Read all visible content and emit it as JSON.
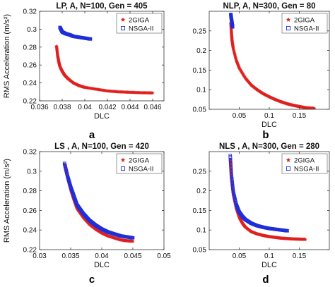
{
  "chart_data": [
    {
      "type": "scatter",
      "title": "LP, A, N=100, Gen = 405",
      "panel_label": "a",
      "xlabel": "DLC",
      "ylabel": "RMS Acceleration (m/s²)",
      "xlim": [
        0.036,
        0.047
      ],
      "ylim": [
        0.22,
        0.32
      ],
      "xticks": [
        "0.036",
        "0.038",
        "0.04",
        "0.042",
        "0.044",
        "0.046"
      ],
      "yticks": [
        "0.22",
        "0.24",
        "0.26",
        "0.28",
        "0.3",
        "0.32"
      ],
      "legend_position": "top-right",
      "grid": false,
      "series": [
        {
          "name": "2GIGA",
          "marker": "star",
          "color": "#e02020",
          "x": [
            0.0375,
            0.0376,
            0.0377,
            0.0378,
            0.038,
            0.0382,
            0.0385,
            0.039,
            0.0395,
            0.04,
            0.041,
            0.042,
            0.043,
            0.044,
            0.045,
            0.046
          ],
          "y": [
            0.281,
            0.27,
            0.263,
            0.258,
            0.253,
            0.249,
            0.245,
            0.24,
            0.237,
            0.235,
            0.233,
            0.231,
            0.23,
            0.2295,
            0.229,
            0.2288
          ]
        },
        {
          "name": "NSGA-II",
          "marker": "square",
          "color": "#1f2fd8",
          "x": [
            0.0378,
            0.038,
            0.0383,
            0.0386,
            0.039,
            0.0395,
            0.04,
            0.0405
          ],
          "y": [
            0.302,
            0.297,
            0.295,
            0.294,
            0.292,
            0.291,
            0.29,
            0.289
          ]
        }
      ]
    },
    {
      "type": "scatter",
      "title": "NLP, A, N=300, Gen = 80",
      "panel_label": "b",
      "xlabel": "DLC",
      "ylabel": "",
      "xlim": [
        0,
        0.2
      ],
      "ylim": [
        0.05,
        0.3
      ],
      "xticks": [
        "0.05",
        "0.1",
        "0.15"
      ],
      "yticks": [
        "0.05",
        "0.1",
        "0.15",
        "0.2",
        "0.25"
      ],
      "legend_position": "top-right",
      "grid": false,
      "series": [
        {
          "name": "2GIGA",
          "marker": "star",
          "color": "#e02020",
          "x": [
            0.036,
            0.037,
            0.038,
            0.04,
            0.045,
            0.05,
            0.06,
            0.07,
            0.08,
            0.09,
            0.1,
            0.11,
            0.12,
            0.13,
            0.14,
            0.15,
            0.16,
            0.17,
            0.175
          ],
          "y": [
            0.27,
            0.245,
            0.225,
            0.205,
            0.175,
            0.155,
            0.13,
            0.112,
            0.1,
            0.09,
            0.082,
            0.075,
            0.069,
            0.064,
            0.06,
            0.057,
            0.054,
            0.0525,
            0.052
          ]
        },
        {
          "name": "NSGA-II",
          "marker": "square",
          "color": "#1f2fd8",
          "x": [
            0.036,
            0.0365,
            0.037,
            0.0375,
            0.038,
            0.0385,
            0.039
          ],
          "y": [
            0.292,
            0.285,
            0.28,
            0.275,
            0.27,
            0.265,
            0.26
          ]
        }
      ]
    },
    {
      "type": "scatter",
      "title": "LS , A, N=100, Gen = 420",
      "panel_label": "c",
      "xlabel": "DLC",
      "ylabel": "RMS Acceleration (m/s²)",
      "xlim": [
        0.03,
        0.05
      ],
      "ylim": [
        0.22,
        0.32
      ],
      "xticks": [
        "0.03",
        "0.035",
        "0.04",
        "0.045",
        "0.05"
      ],
      "yticks": [
        "0.22",
        "0.24",
        "0.26",
        "0.28",
        "0.3",
        "0.32"
      ],
      "legend_position": "top-right",
      "grid": false,
      "series": [
        {
          "name": "2GIGA",
          "marker": "star",
          "color": "#e02020",
          "x": [
            0.034,
            0.0345,
            0.035,
            0.0355,
            0.036,
            0.037,
            0.038,
            0.039,
            0.04,
            0.041,
            0.042,
            0.043,
            0.044,
            0.045
          ],
          "y": [
            0.307,
            0.293,
            0.281,
            0.271,
            0.262,
            0.253,
            0.246,
            0.241,
            0.237,
            0.234,
            0.232,
            0.23,
            0.229,
            0.2285
          ]
        },
        {
          "name": "NSGA-II",
          "marker": "square",
          "color": "#1f2fd8",
          "x": [
            0.034,
            0.0345,
            0.035,
            0.0355,
            0.036,
            0.037,
            0.038,
            0.039,
            0.04,
            0.041,
            0.042,
            0.043,
            0.044,
            0.045
          ],
          "y": [
            0.308,
            0.295,
            0.284,
            0.275,
            0.266,
            0.257,
            0.25,
            0.245,
            0.241,
            0.238,
            0.236,
            0.234,
            0.233,
            0.232
          ]
        }
      ]
    },
    {
      "type": "scatter",
      "title": "NLS , A, N=300, Gen = 280",
      "panel_label": "d",
      "xlabel": "DLC",
      "ylabel": "",
      "xlim": [
        0,
        0.2
      ],
      "ylim": [
        0.05,
        0.3
      ],
      "xticks": [
        "0.05",
        "0.1",
        "0.15"
      ],
      "yticks": [
        "0.05",
        "0.1",
        "0.15",
        "0.2",
        "0.25"
      ],
      "legend_position": "top-right",
      "grid": false,
      "series": [
        {
          "name": "2GIGA",
          "marker": "star",
          "color": "#e02020",
          "x": [
            0.035,
            0.037,
            0.04,
            0.045,
            0.05,
            0.055,
            0.06,
            0.07,
            0.08,
            0.09,
            0.1,
            0.11,
            0.12,
            0.13,
            0.14,
            0.15,
            0.16
          ],
          "y": [
            0.28,
            0.23,
            0.19,
            0.155,
            0.132,
            0.118,
            0.108,
            0.096,
            0.09,
            0.086,
            0.083,
            0.081,
            0.079,
            0.078,
            0.077,
            0.0765,
            0.076
          ]
        },
        {
          "name": "NSGA-II",
          "marker": "square",
          "color": "#1f2fd8",
          "x": [
            0.035,
            0.037,
            0.04,
            0.045,
            0.05,
            0.055,
            0.06,
            0.07,
            0.08,
            0.09,
            0.1,
            0.11,
            0.12,
            0.13
          ],
          "y": [
            0.29,
            0.24,
            0.198,
            0.165,
            0.146,
            0.135,
            0.127,
            0.117,
            0.111,
            0.107,
            0.104,
            0.102,
            0.1,
            0.098
          ]
        }
      ]
    }
  ]
}
